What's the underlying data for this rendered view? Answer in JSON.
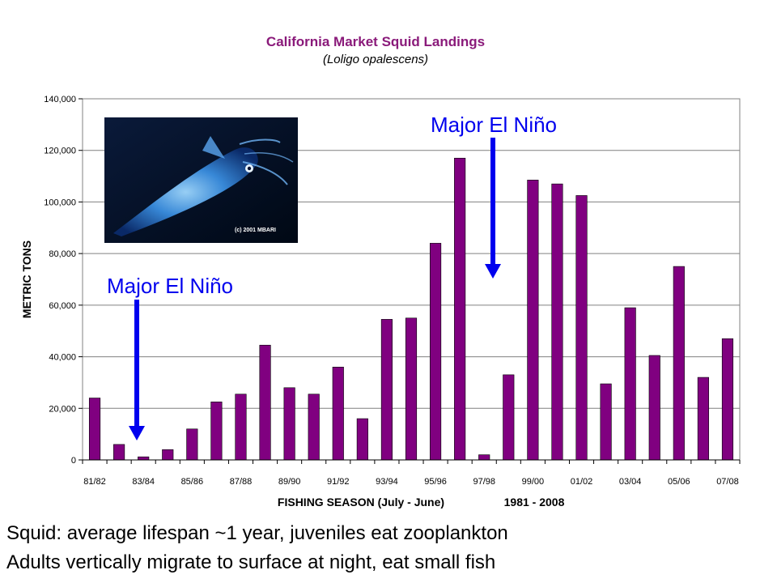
{
  "chart_data": {
    "type": "bar",
    "title": "California Market Squid Landings",
    "subtitle": "(Loligo opalescens)",
    "xlabel": "FISHING SEASON (July - June)",
    "xlabel_range": "1981 - 2008",
    "ylabel": "METRIC TONS",
    "ylim": [
      0,
      140000
    ],
    "yticks": [
      "0",
      "20,000",
      "40,000",
      "60,000",
      "80,000",
      "100,000",
      "120,000",
      "140,000"
    ],
    "grid": true,
    "bar_color": "#800080",
    "categories": [
      "81/82",
      "82/83",
      "83/84",
      "84/85",
      "85/86",
      "86/87",
      "87/88",
      "88/89",
      "89/90",
      "90/91",
      "91/92",
      "92/93",
      "93/94",
      "94/95",
      "95/96",
      "96/97",
      "97/98",
      "98/99",
      "99/00",
      "00/01",
      "01/02",
      "02/03",
      "03/04",
      "04/05",
      "05/06",
      "06/07",
      "07/08"
    ],
    "values": [
      24000,
      6000,
      1200,
      4000,
      12000,
      22500,
      25500,
      44500,
      28000,
      25500,
      36000,
      16000,
      54500,
      55000,
      84000,
      117000,
      2000,
      33000,
      108500,
      107000,
      102500,
      29500,
      59000,
      40500,
      75000,
      32000,
      47000
    ],
    "xtick_labels": [
      "81/82",
      "83/84",
      "85/86",
      "87/88",
      "89/90",
      "91/92",
      "93/94",
      "95/96",
      "97/98",
      "99/00",
      "01/02",
      "03/04",
      "05/06",
      "07/08"
    ],
    "annotations": [
      {
        "text": "Major El Niño",
        "target_category": "82/83"
      },
      {
        "text": "Major El Niño",
        "target_category": "97/98"
      }
    ]
  },
  "photo": {
    "icon": "squid-photo",
    "credit": "(c) 2001 MBARI"
  },
  "captions": [
    "Squid: average lifespan ~1 year, juveniles eat zooplankton",
    "Adults vertically migrate to surface at night, eat small fish"
  ]
}
